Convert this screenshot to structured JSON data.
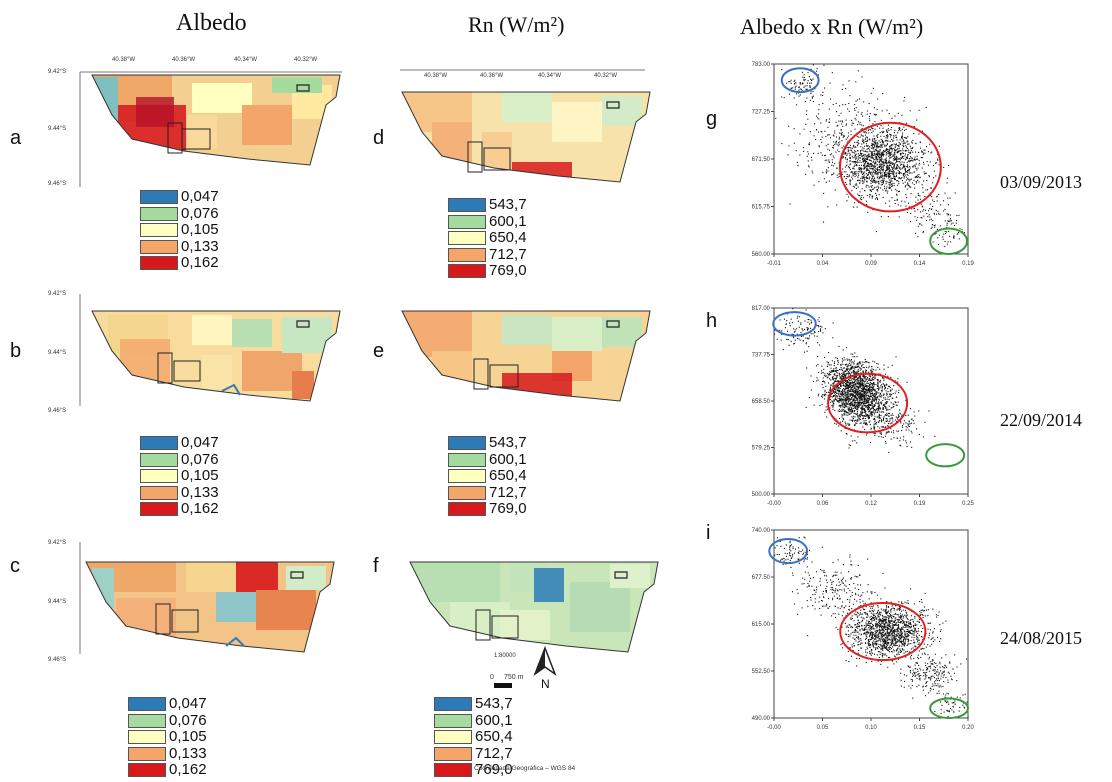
{
  "columns": {
    "albedo_title": "Albedo",
    "rn_title": "Rn (W/m²)",
    "scatter_title": "Albedo x Rn (W/m²)"
  },
  "rows": [
    {
      "map_albedo": "a",
      "map_rn": "d",
      "scatter": "g",
      "date": "03/09/2013"
    },
    {
      "map_albedo": "b",
      "map_rn": "e",
      "scatter": "h",
      "date": "22/09/2014"
    },
    {
      "map_albedo": "c",
      "map_rn": "f",
      "scatter": "i",
      "date": "24/08/2015"
    }
  ],
  "map_axes": {
    "lon_ticks": [
      "40.38°W",
      "40.36°W",
      "40.34°W",
      "40.32°W"
    ],
    "lat_ticks": [
      "9.42°S",
      "9.44°S",
      "9.46°S"
    ]
  },
  "albedo_legend": [
    {
      "label": "0,047",
      "color": "#2c7bb6"
    },
    {
      "label": "0,076",
      "color": "#a6dba0"
    },
    {
      "label": "0,105",
      "color": "#ffffbf"
    },
    {
      "label": "0,133",
      "color": "#f4a66a"
    },
    {
      "label": "0,162",
      "color": "#d7191c"
    }
  ],
  "rn_legend": [
    {
      "label": "543,7",
      "color": "#2c7bb6"
    },
    {
      "label": "600,1",
      "color": "#a6dba0"
    },
    {
      "label": "650,4",
      "color": "#ffffbf"
    },
    {
      "label": "712,7",
      "color": "#f4a66a"
    },
    {
      "label": "769,0",
      "color": "#d7191c"
    }
  ],
  "scale": {
    "ratio": "1:80000",
    "zero": "0",
    "distance": "750 m",
    "north": "N",
    "crs": "Coordenada Geográfica – WGS 84"
  },
  "chart_data": [
    {
      "type": "scatter",
      "panel": "g",
      "date": "03/09/2013",
      "x_ticks": [
        "-0.01",
        "0.04",
        "0.09",
        "0.14",
        "0.19"
      ],
      "y_ticks": [
        "783.00",
        "727.25",
        "671.50",
        "615.75",
        "560.00"
      ],
      "xlim": [
        -0.01,
        0.19
      ],
      "ylim": [
        560,
        783
      ],
      "clusters": [
        {
          "cx": 0.02,
          "cy": 760,
          "sx": 0.012,
          "sy": 10,
          "n": 90
        },
        {
          "cx": 0.1,
          "cy": 668,
          "sx": 0.022,
          "sy": 20,
          "n": 1400
        },
        {
          "cx": 0.07,
          "cy": 700,
          "sx": 0.03,
          "sy": 28,
          "n": 300
        },
        {
          "cx": 0.15,
          "cy": 612,
          "sx": 0.015,
          "sy": 15,
          "n": 120
        },
        {
          "cx": 0.17,
          "cy": 585,
          "sx": 0.01,
          "sy": 10,
          "n": 40
        }
      ],
      "circles": [
        {
          "color": "#3a6fc4",
          "cx": 0.017,
          "cy": 764,
          "rx": 0.019,
          "ry": 14
        },
        {
          "color": "#e02020",
          "cx": 0.11,
          "cy": 662,
          "rx": 0.052,
          "ry": 52
        },
        {
          "color": "#3a9a3a",
          "cx": 0.17,
          "cy": 575,
          "rx": 0.019,
          "ry": 15
        }
      ]
    },
    {
      "type": "scatter",
      "panel": "h",
      "date": "22/09/2014",
      "x_ticks": [
        "-0.00",
        "0.06",
        "0.12",
        "0.19",
        "0.25"
      ],
      "y_ticks": [
        "817.00",
        "737.75",
        "658.50",
        "579.25",
        "500.00"
      ],
      "xlim": [
        -0.005,
        0.25
      ],
      "ylim": [
        500,
        817
      ],
      "clusters": [
        {
          "cx": 0.03,
          "cy": 778,
          "sx": 0.018,
          "sy": 16,
          "n": 120
        },
        {
          "cx": 0.09,
          "cy": 690,
          "sx": 0.018,
          "sy": 22,
          "n": 700
        },
        {
          "cx": 0.11,
          "cy": 664,
          "sx": 0.02,
          "sy": 24,
          "n": 1200
        },
        {
          "cx": 0.15,
          "cy": 620,
          "sx": 0.018,
          "sy": 18,
          "n": 150
        }
      ],
      "circles": [
        {
          "color": "#3a6fc4",
          "cx": 0.022,
          "cy": 790,
          "rx": 0.028,
          "ry": 20
        },
        {
          "color": "#e02020",
          "cx": 0.118,
          "cy": 655,
          "rx": 0.052,
          "ry": 50
        },
        {
          "color": "#3a9a3a",
          "cx": 0.22,
          "cy": 566,
          "rx": 0.025,
          "ry": 19
        }
      ]
    },
    {
      "type": "scatter",
      "panel": "i",
      "date": "24/08/2015",
      "x_ticks": [
        "-0.00",
        "0.05",
        "0.10",
        "0.15",
        "0.20"
      ],
      "y_ticks": [
        "740.00",
        "677.50",
        "615.00",
        "552.50",
        "490.00"
      ],
      "xlim": [
        -0.005,
        0.2
      ],
      "ylim": [
        490,
        740
      ],
      "clusters": [
        {
          "cx": 0.015,
          "cy": 710,
          "sx": 0.012,
          "sy": 10,
          "n": 80
        },
        {
          "cx": 0.06,
          "cy": 660,
          "sx": 0.02,
          "sy": 18,
          "n": 200
        },
        {
          "cx": 0.115,
          "cy": 607,
          "sx": 0.02,
          "sy": 17,
          "n": 1300
        },
        {
          "cx": 0.16,
          "cy": 548,
          "sx": 0.015,
          "sy": 13,
          "n": 200
        },
        {
          "cx": 0.185,
          "cy": 508,
          "sx": 0.01,
          "sy": 8,
          "n": 60
        }
      ],
      "circles": [
        {
          "color": "#3a6fc4",
          "cx": 0.01,
          "cy": 712,
          "rx": 0.02,
          "ry": 16
        },
        {
          "color": "#e02020",
          "cx": 0.11,
          "cy": 605,
          "rx": 0.045,
          "ry": 38
        },
        {
          "color": "#3a9a3a",
          "cx": 0.18,
          "cy": 503,
          "rx": 0.02,
          "ry": 13
        }
      ]
    }
  ]
}
